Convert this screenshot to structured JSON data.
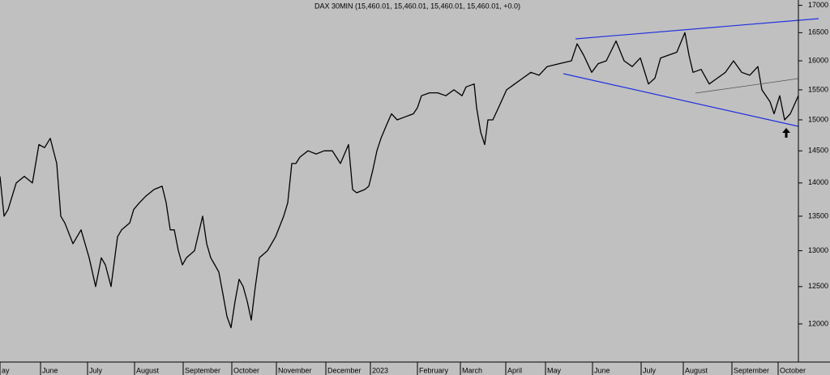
{
  "chart_data": {
    "type": "line",
    "title": "DAX 30MIN (15,460.01, 15,460.01, 15,460.01, 15,460.01, +0.0)",
    "log_scale": true,
    "x": [
      0,
      5,
      10,
      20,
      30,
      40,
      48,
      55,
      62,
      70,
      75,
      80,
      90,
      100,
      110,
      118,
      125,
      130,
      137,
      145,
      150,
      160,
      165,
      172,
      180,
      190,
      200,
      205,
      210,
      215,
      220,
      225,
      230,
      240,
      250,
      255,
      260,
      265,
      270,
      275,
      280,
      285,
      290,
      295,
      300,
      305,
      310,
      315,
      320,
      330,
      340,
      350,
      355,
      360,
      365,
      370,
      380,
      390,
      400,
      410,
      420,
      430,
      435,
      440,
      450,
      455,
      460,
      465,
      470,
      478,
      483,
      490,
      500,
      510,
      515,
      520,
      530,
      540,
      550,
      560,
      570,
      575,
      585,
      588,
      593,
      598,
      602,
      608,
      615,
      625,
      635,
      645,
      655,
      665,
      675,
      690,
      705,
      712,
      720,
      730,
      738,
      748,
      760,
      770,
      780,
      790,
      800,
      808,
      815,
      825,
      835,
      845,
      850,
      855,
      865,
      875,
      885,
      895,
      905,
      915,
      925,
      935,
      940,
      950,
      955,
      962,
      968,
      975,
      985
    ],
    "series": [
      {
        "color": "#000000",
        "values": [
          14100,
          13500,
          13600,
          14000,
          14100,
          14000,
          14600,
          14550,
          14700,
          14300,
          13500,
          13400,
          13100,
          13300,
          12900,
          12500,
          12900,
          12800,
          12500,
          13200,
          13300,
          13400,
          13600,
          13700,
          13800,
          13900,
          13950,
          13700,
          13300,
          13300,
          13000,
          12800,
          12900,
          13000,
          13500,
          13100,
          12900,
          12800,
          12700,
          12400,
          12100,
          11950,
          12300,
          12600,
          12500,
          12300,
          12050,
          12500,
          12900,
          13000,
          13200,
          13500,
          13700,
          14300,
          14300,
          14400,
          14500,
          14450,
          14500,
          14500,
          14300,
          14600,
          13900,
          13850,
          13900,
          13950,
          14200,
          14500,
          14700,
          14950,
          15100,
          15000,
          15050,
          15100,
          15200,
          15400,
          15450,
          15450,
          15400,
          15500,
          15400,
          15550,
          15600,
          15200,
          14800,
          14600,
          15000,
          15000,
          15200,
          15500,
          15600,
          15700,
          15800,
          15750,
          15900,
          15950,
          16000,
          16300,
          16100,
          15800,
          15950,
          16000,
          16350,
          16000,
          15900,
          16050,
          15600,
          15700,
          16050,
          16100,
          16150,
          16500,
          16100,
          15800,
          15850,
          15600,
          15700,
          15800,
          16000,
          15800,
          15750,
          15900,
          15500,
          15300,
          15100,
          15400,
          15000,
          15100,
          15400
        ]
      }
    ],
    "xlim": [
      0,
      985
    ],
    "xticks": [
      {
        "value": 0,
        "label": "ay"
      },
      {
        "value": 50,
        "label": "June"
      },
      {
        "value": 108,
        "label": "July"
      },
      {
        "value": 166,
        "label": "August"
      },
      {
        "value": 226,
        "label": "September"
      },
      {
        "value": 286,
        "label": "October"
      },
      {
        "value": 341,
        "label": "November"
      },
      {
        "value": 402,
        "label": "December"
      },
      {
        "value": 457,
        "label": "2023"
      },
      {
        "value": 515,
        "label": "February"
      },
      {
        "value": 568,
        "label": "March"
      },
      {
        "value": 624,
        "label": "April"
      },
      {
        "value": 673,
        "label": "May"
      },
      {
        "value": 731,
        "label": "June"
      },
      {
        "value": 791,
        "label": "July"
      },
      {
        "value": 843,
        "label": "August"
      },
      {
        "value": 903,
        "label": "September"
      },
      {
        "value": 960,
        "label": "October"
      }
    ],
    "ylim": [
      11510,
      17100
    ],
    "yticks": [
      12000,
      12500,
      13000,
      13500,
      14000,
      14500,
      15000,
      15500,
      16000,
      16500,
      17000
    ]
  }
}
